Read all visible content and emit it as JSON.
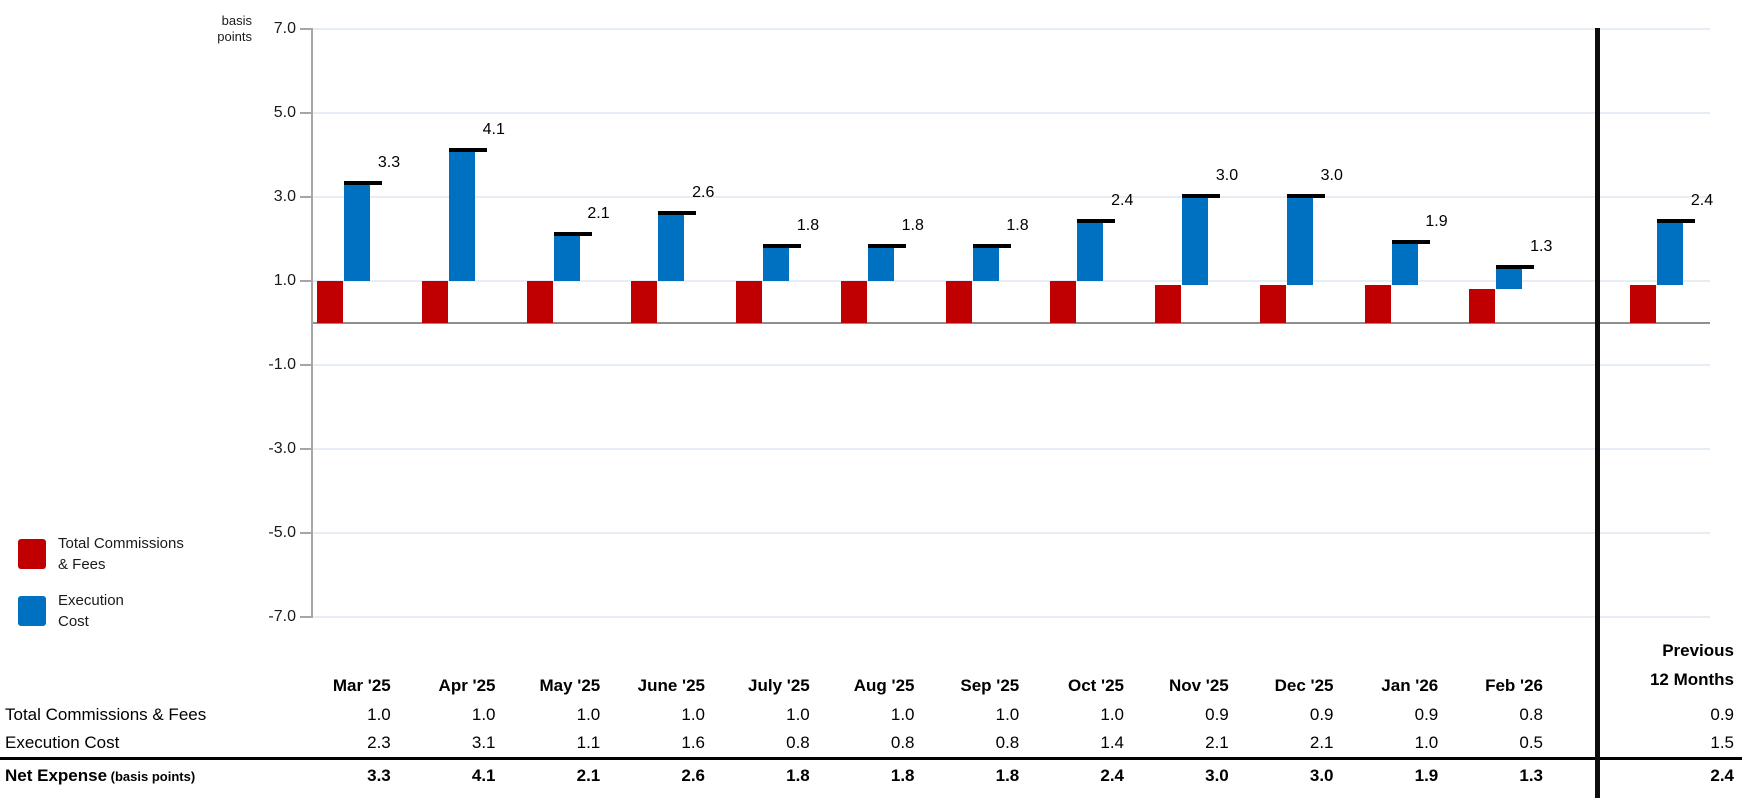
{
  "chart_data": {
    "type": "bar",
    "stacked": true,
    "title": "",
    "ylabel": "basis points",
    "y_axis_unit_lines": [
      "basis",
      "points"
    ],
    "ylim": [
      -7.0,
      7.0
    ],
    "ytick_step": 2.0,
    "yticks": [
      7.0,
      5.0,
      3.0,
      1.0,
      -1.0,
      -3.0,
      -5.0,
      -7.0
    ],
    "grid": true,
    "legend_position": "bottom-left",
    "categories": [
      "Mar '25",
      "Apr '25",
      "May '25",
      "June '25",
      "July '25",
      "Aug '25",
      "Sep '25",
      "Oct '25",
      "Nov '25",
      "Dec '25",
      "Jan '26",
      "Feb '26",
      "Previous 12 Months"
    ],
    "series": [
      {
        "name": "Total Commissions & Fees",
        "color": "#C00000",
        "values": [
          1.0,
          1.0,
          1.0,
          1.0,
          1.0,
          1.0,
          1.0,
          1.0,
          0.9,
          0.9,
          0.9,
          0.8,
          0.9
        ]
      },
      {
        "name": "Execution Cost",
        "color": "#0070C0",
        "values": [
          2.3,
          3.1,
          1.1,
          1.6,
          0.8,
          0.8,
          0.8,
          1.4,
          2.1,
          2.1,
          1.0,
          0.5,
          1.5
        ]
      }
    ],
    "totals": [
      3.3,
      4.1,
      2.1,
      2.6,
      1.8,
      1.8,
      1.8,
      2.4,
      3.0,
      3.0,
      1.9,
      1.3,
      2.4
    ],
    "totals_label": "Net Expense",
    "separator_after_category": "Feb '26",
    "colors": {
      "zero_line": "#8f8f8f",
      "axis": "#a6a6a6",
      "gridline": "#e6edf4",
      "total_cap": "#000000"
    }
  },
  "legend": {
    "items": [
      {
        "line1": "Total Commissions",
        "line2": "& Fees",
        "color": "#C00000"
      },
      {
        "line1": "Execution",
        "line2": "Cost",
        "color": "#0070C0"
      }
    ]
  },
  "table": {
    "month_columns": [
      "Mar '25",
      "Apr '25",
      "May '25",
      "June '25",
      "July '25",
      "Aug '25",
      "Sep '25",
      "Oct '25",
      "Nov '25",
      "Dec '25",
      "Jan '26",
      "Feb '26"
    ],
    "previous_column_lines": [
      "Previous",
      "12 Months"
    ],
    "rows": [
      {
        "label": "Total Commissions & Fees",
        "suffix": "",
        "bold": false,
        "values": [
          1.0,
          1.0,
          1.0,
          1.0,
          1.0,
          1.0,
          1.0,
          1.0,
          0.9,
          0.9,
          0.9,
          0.8
        ],
        "previous": 0.9
      },
      {
        "label": "Execution Cost",
        "suffix": "",
        "bold": false,
        "values": [
          2.3,
          3.1,
          1.1,
          1.6,
          0.8,
          0.8,
          0.8,
          1.4,
          2.1,
          2.1,
          1.0,
          0.5
        ],
        "previous": 1.5
      },
      {
        "label": "Net Expense",
        "suffix": "(basis points)",
        "bold": true,
        "values": [
          3.3,
          4.1,
          2.1,
          2.6,
          1.8,
          1.8,
          1.8,
          2.4,
          3.0,
          3.0,
          1.9,
          1.3
        ],
        "previous": 2.4
      }
    ]
  }
}
